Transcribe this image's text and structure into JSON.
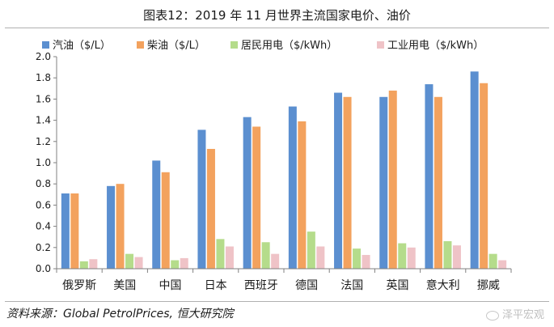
{
  "title": "图表12：2019 年 11 月世界主流国家电价、油价",
  "source": "资料来源：Global PetrolPrices, 恒大研究院",
  "watermark": "泽平宏观",
  "chart_data": {
    "type": "bar",
    "title": "图表12：2019 年 11 月世界主流国家电价、油价",
    "xlabel": "",
    "ylabel": "",
    "ylim": [
      0,
      2.0
    ],
    "yticks": [
      "0.0",
      "0.2",
      "0.4",
      "0.6",
      "0.8",
      "1.0",
      "1.2",
      "1.4",
      "1.6",
      "1.8",
      "2.0"
    ],
    "grid": false,
    "legend": "top",
    "categories": [
      "俄罗斯",
      "美国",
      "中国",
      "日本",
      "西班牙",
      "德国",
      "法国",
      "英国",
      "意大利",
      "挪威"
    ],
    "series": [
      {
        "name": "汽油（$/L）",
        "color": "#5b8fd0",
        "values": [
          0.71,
          0.78,
          1.02,
          1.31,
          1.43,
          1.53,
          1.66,
          1.62,
          1.74,
          1.86
        ]
      },
      {
        "name": "柴油（$/L）",
        "color": "#f3a25e",
        "values": [
          0.71,
          0.8,
          0.91,
          1.13,
          1.34,
          1.39,
          1.62,
          1.68,
          1.62,
          1.75
        ]
      },
      {
        "name": "居民用电（$/kWh）",
        "color": "#b5dc8b",
        "values": [
          0.07,
          0.14,
          0.08,
          0.28,
          0.25,
          0.35,
          0.19,
          0.24,
          0.26,
          0.14
        ]
      },
      {
        "name": "工业用电（$/kWh）",
        "color": "#efc3c7",
        "values": [
          0.09,
          0.11,
          0.1,
          0.21,
          0.14,
          0.21,
          0.13,
          0.2,
          0.22,
          0.08
        ]
      }
    ]
  }
}
